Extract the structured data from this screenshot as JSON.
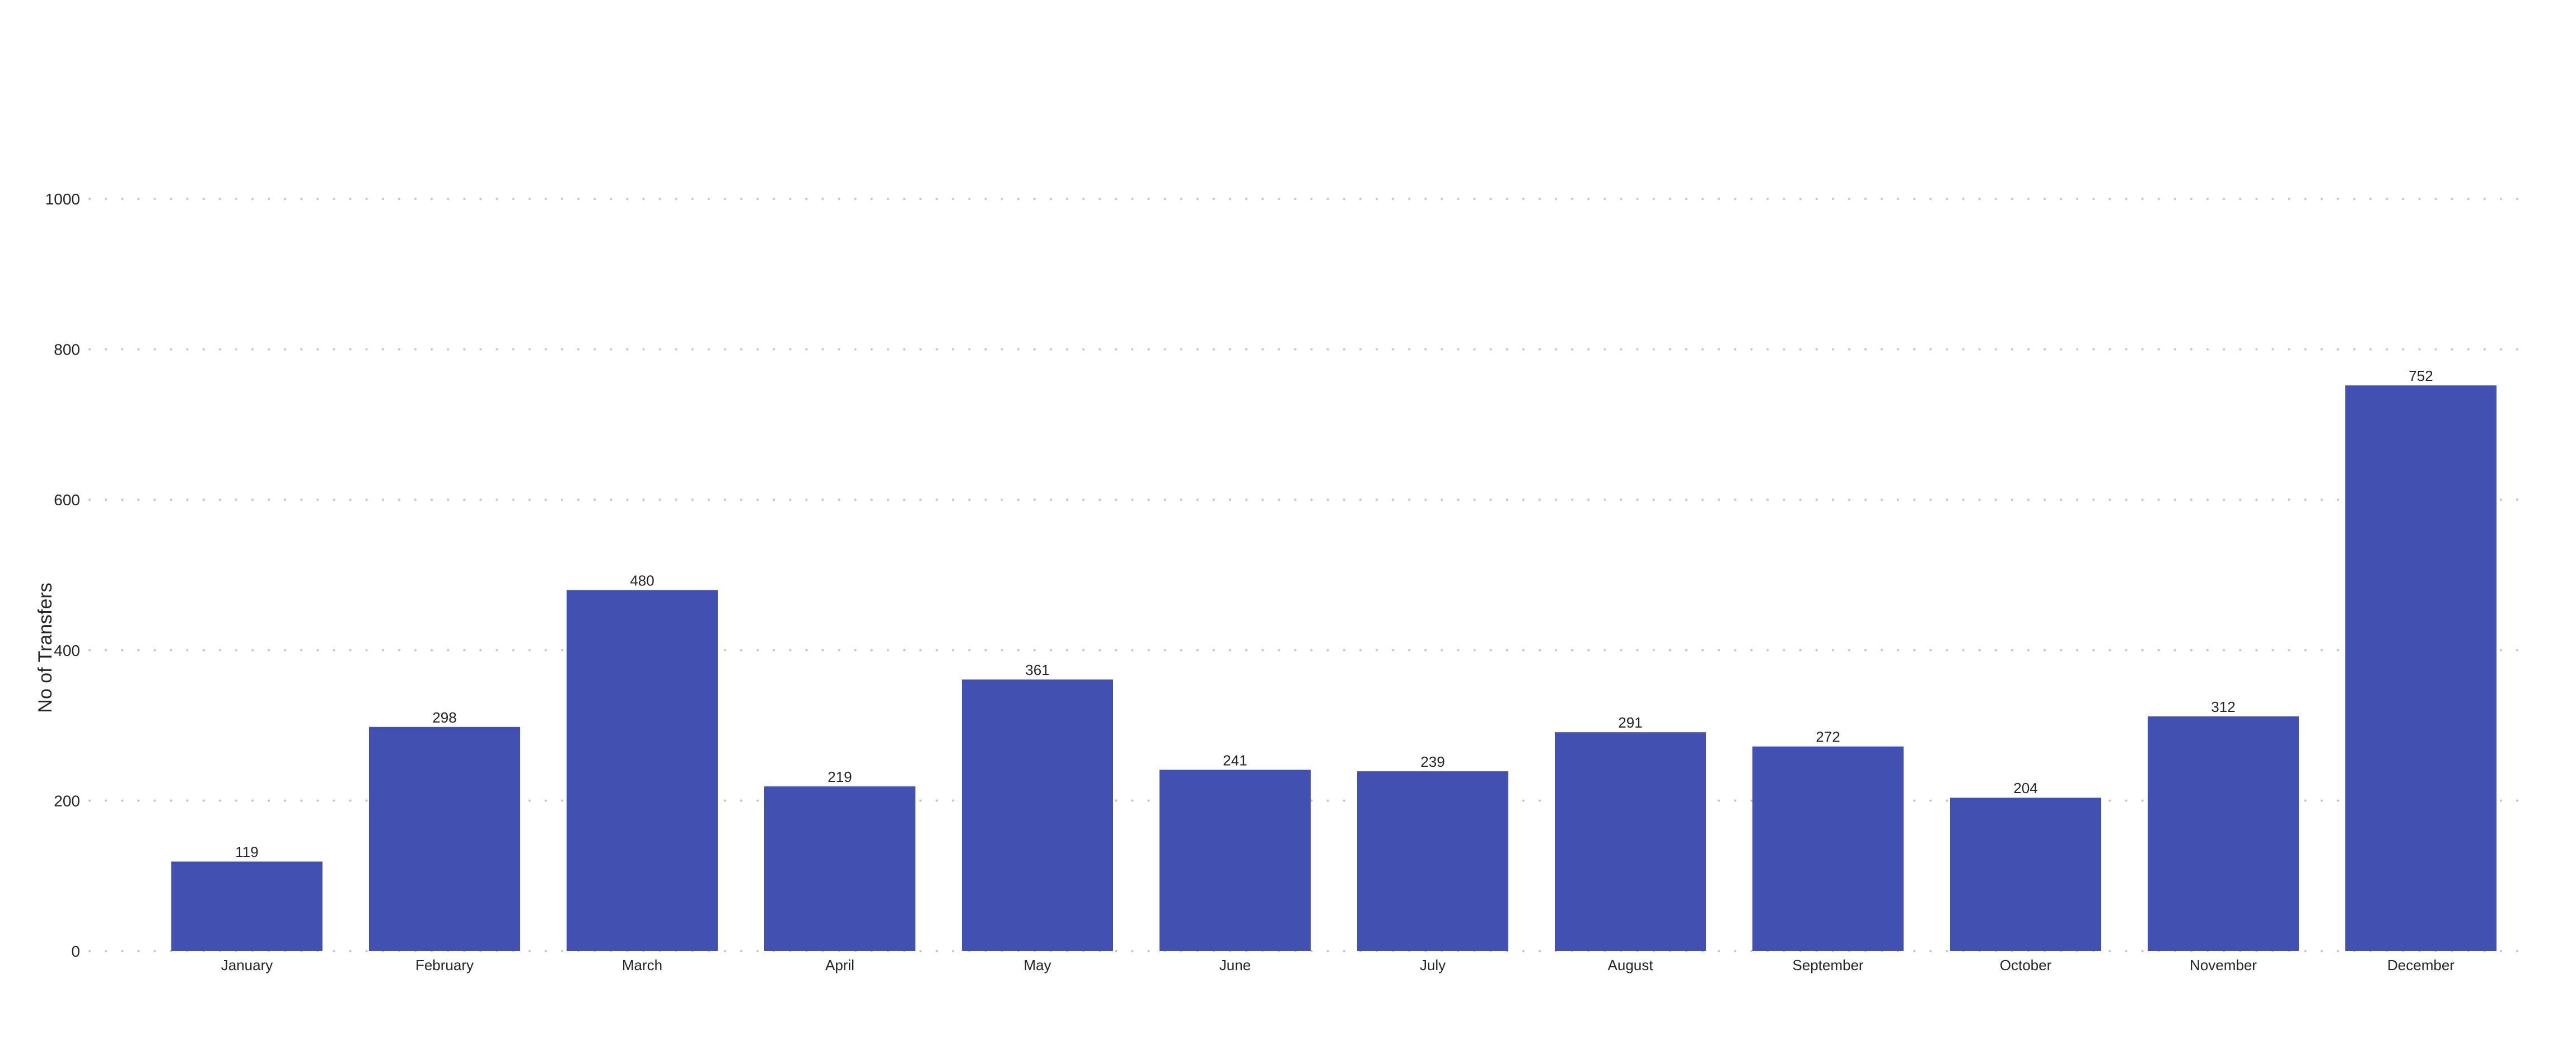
{
  "chart_data": {
    "type": "bar",
    "categories": [
      "January",
      "February",
      "March",
      "April",
      "May",
      "June",
      "July",
      "August",
      "September",
      "October",
      "November",
      "December"
    ],
    "values": [
      119,
      298,
      480,
      219,
      361,
      241,
      239,
      291,
      272,
      204,
      312,
      752
    ],
    "ylabel": "No of Transfers",
    "xlabel": "",
    "ylim": [
      0,
      1000
    ],
    "yticks": [
      0,
      200,
      400,
      600,
      800,
      1000
    ],
    "grid": true,
    "data_labels": true,
    "bar_color": "#4150b1"
  }
}
